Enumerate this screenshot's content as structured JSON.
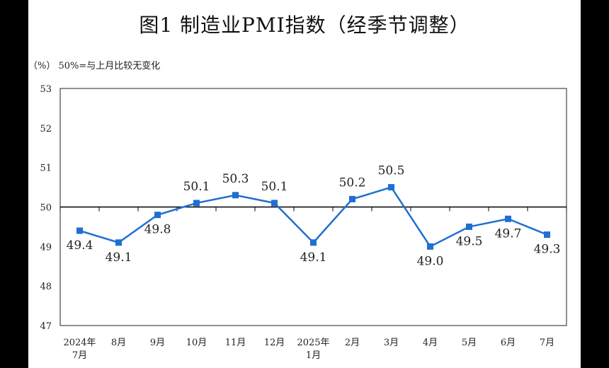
{
  "chart_data": {
    "type": "line",
    "title": "图1  制造业PMI指数（经季节调整）",
    "note": "（%）  50%=与上月比较无变化",
    "categories": [
      [
        "2024年",
        "7月"
      ],
      [
        "8月"
      ],
      [
        "9月"
      ],
      [
        "10月"
      ],
      [
        "11月"
      ],
      [
        "12月"
      ],
      [
        "2025年",
        "1月"
      ],
      [
        "2月"
      ],
      [
        "3月"
      ],
      [
        "4月"
      ],
      [
        "5月"
      ],
      [
        "6月"
      ],
      [
        "7月"
      ]
    ],
    "values": [
      49.4,
      49.1,
      49.8,
      50.1,
      50.3,
      50.1,
      49.1,
      50.2,
      50.5,
      49.0,
      49.5,
      49.7,
      49.3
    ],
    "data_labels": [
      "49.4",
      "49.1",
      "49.8",
      "50.1",
      "50.3",
      "50.1",
      "49.1",
      "50.2",
      "50.5",
      "49.0",
      "49.5",
      "49.7",
      "49.3"
    ],
    "label_positions": [
      "below",
      "below",
      "below",
      "above",
      "above",
      "above",
      "below",
      "above",
      "above",
      "below",
      "below",
      "below",
      "below"
    ],
    "yticks": [
      "47",
      "48",
      "49",
      "50",
      "51",
      "52",
      "53"
    ],
    "ylim": [
      47,
      53
    ],
    "reference_line": 50,
    "grid": false,
    "colors": {
      "line": "#1f6fd1",
      "marker": "#1f6fd1",
      "axis": "#222222",
      "reference": "#000000"
    }
  }
}
